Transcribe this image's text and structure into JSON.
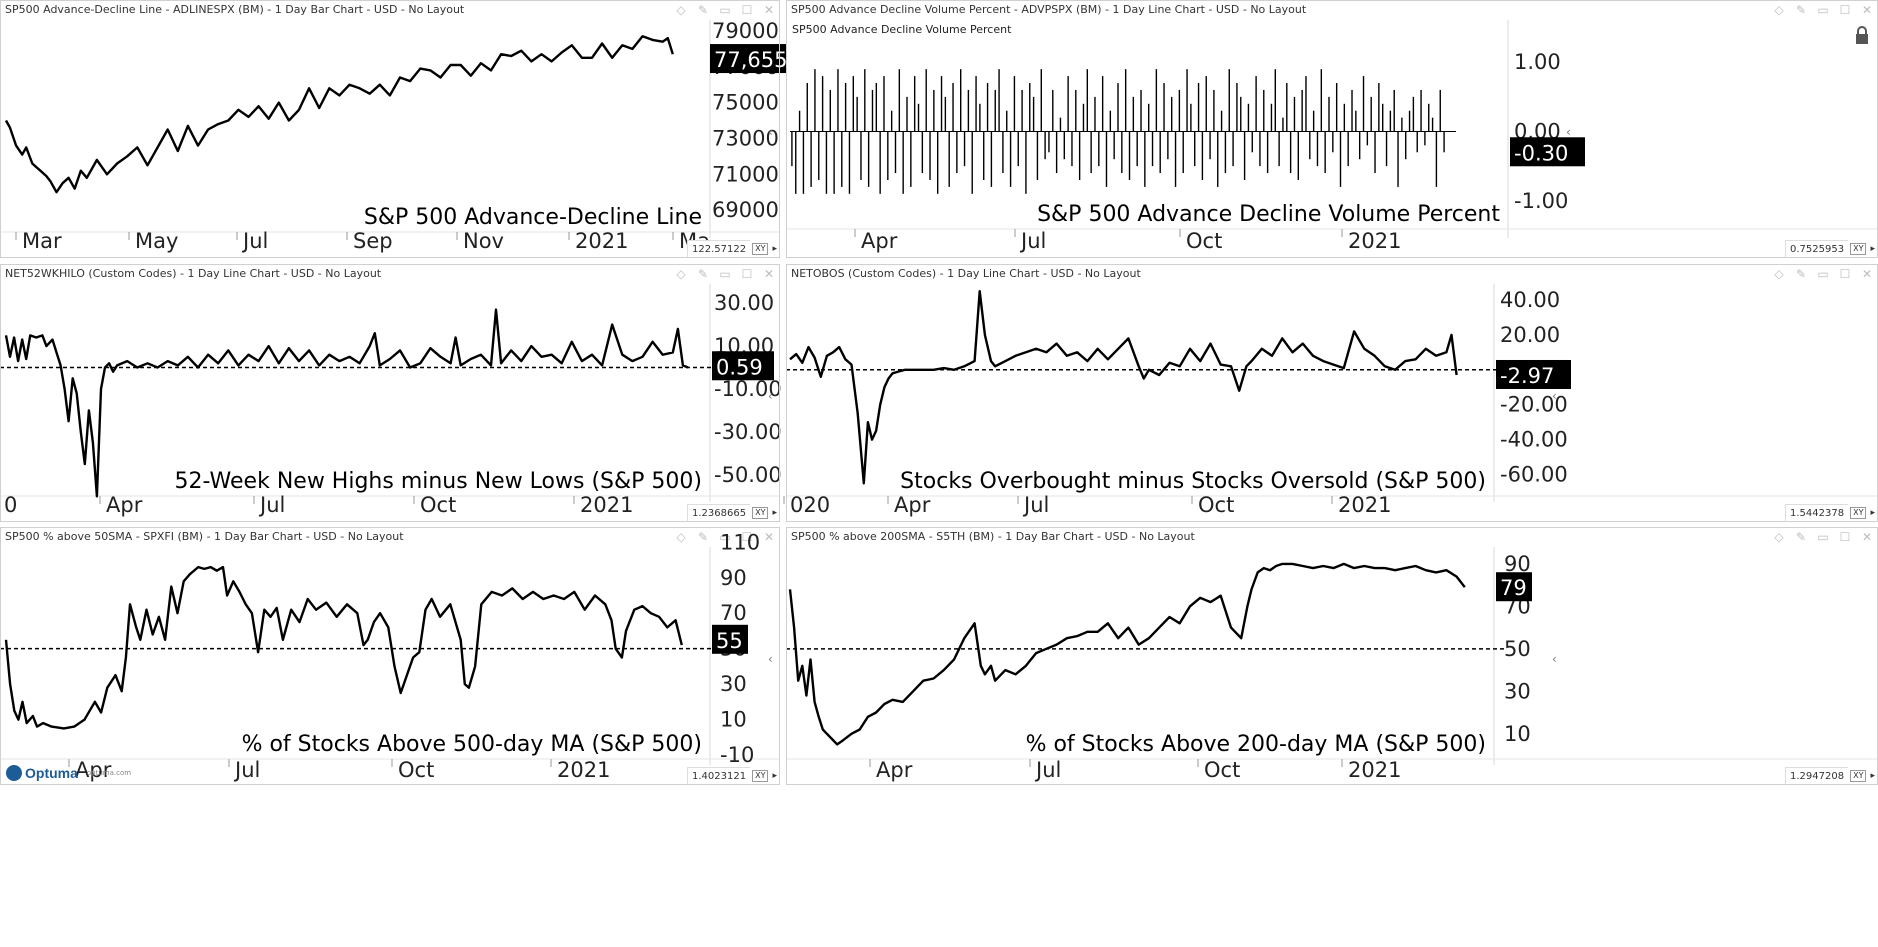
{
  "app": {
    "logo_text": "Optuma",
    "logo_sub": "optuma.com"
  },
  "window_icons": [
    "diamond-icon",
    "pin-icon",
    "restore-icon",
    "maximize-icon",
    "close-icon"
  ],
  "colors": {
    "line": "#000000",
    "label_bg": "#000000",
    "label_fg": "#ffffff",
    "border": "#d0d0d0",
    "brand": "#1d5c96"
  },
  "panels": [
    {
      "id": "adline",
      "title": "SP500 Advance-Decline Line - ADLINESPX (BM) - 1 Day Bar Chart - USD - No Layout",
      "xy_value": "122.57122",
      "chart_data": {
        "type": "line",
        "caption": "S&P 500 Advance-Decline Line",
        "y_ticks": [
          "79000",
          "77000",
          "75000",
          "73000",
          "71000",
          "69000"
        ],
        "x_ticks": [
          "Mar",
          "May",
          "Jul",
          "Sep",
          "Nov",
          "2021",
          "Ma"
        ],
        "ylim": [
          68000,
          79500
        ],
        "last_value": "77,655",
        "x": [
          0,
          4,
          10,
          16,
          20,
          26,
          30,
          34,
          40,
          44,
          50,
          56,
          62,
          68,
          74,
          80,
          90,
          100,
          110,
          120,
          130,
          140,
          150,
          160,
          170,
          180,
          190,
          200,
          210,
          220,
          230,
          240,
          250,
          260,
          270,
          280,
          290,
          300,
          310,
          320,
          330,
          340,
          350,
          360,
          370,
          380,
          390,
          400,
          410,
          420,
          430,
          440,
          450,
          460,
          470,
          480,
          490,
          500,
          510,
          520,
          530,
          540,
          550,
          560,
          570,
          580,
          590,
          600,
          610,
          620,
          630,
          640,
          650,
          655,
          660
        ],
        "values": [
          74000,
          73600,
          72600,
          72100,
          72500,
          71600,
          71400,
          71200,
          70900,
          70600,
          70000,
          70500,
          70800,
          70200,
          71200,
          70800,
          71800,
          71000,
          71600,
          72000,
          72500,
          71500,
          72500,
          73500,
          72300,
          73700,
          72600,
          73500,
          73800,
          74000,
          74600,
          74200,
          74800,
          74100,
          75000,
          74000,
          74600,
          75800,
          74700,
          75800,
          75400,
          76000,
          75800,
          75500,
          76000,
          75400,
          76400,
          76200,
          76900,
          76800,
          76400,
          77100,
          77100,
          76500,
          77200,
          76800,
          77700,
          77600,
          77900,
          77300,
          77700,
          77300,
          77800,
          78200,
          77500,
          77500,
          78300,
          77500,
          78200,
          78000,
          78700,
          78500,
          78400,
          78600,
          77700
        ]
      }
    },
    {
      "id": "advpspx",
      "title": "SP500 Advance Decline Volume Percent - ADVPSPX (BM) - 1 Day Line Chart - USD - No Layout",
      "subtitle": "SP500 Advance Decline Volume Percent",
      "xy_value": "0.7525953",
      "chart_data": {
        "type": "bar",
        "caption": "S&P 500 Advance Decline Volume Percent",
        "y_ticks": [
          "1.00",
          "0.00",
          "-1.00"
        ],
        "x_ticks": [
          "Apr",
          "Jul",
          "Oct",
          "2021"
        ],
        "ylim": [
          -1.35,
          1.35
        ],
        "last_value": "-0.30",
        "values": [
          -0.5,
          -0.9,
          0.3,
          -0.9,
          0.7,
          -0.8,
          0.9,
          -0.7,
          0.8,
          -0.9,
          0.6,
          -0.9,
          0.9,
          -0.8,
          0.7,
          -0.9,
          0.8,
          0.5,
          -0.7,
          0.9,
          -0.8,
          0.6,
          0.7,
          -0.9,
          0.8,
          -0.7,
          0.3,
          -0.6,
          0.9,
          -0.9,
          0.5,
          -0.8,
          0.8,
          0.4,
          -0.6,
          0.9,
          -0.7,
          0.6,
          -0.9,
          0.8,
          0.5,
          -0.8,
          0.7,
          -0.6,
          0.9,
          -0.5,
          0.6,
          -0.9,
          0.8,
          0.4,
          -0.7,
          0.7,
          -0.8,
          0.6,
          0.9,
          -0.6,
          0.3,
          -0.8,
          0.8,
          -0.5,
          0.6,
          -0.9,
          0.7,
          0.5,
          -0.7,
          0.9,
          -0.4,
          -0.3,
          0.6,
          -0.6,
          0.2,
          -0.4,
          0.8,
          -0.5,
          0.6,
          -0.7,
          0.4,
          0.9,
          -0.6,
          0.5,
          -0.5,
          0.8,
          -0.8,
          0.3,
          -0.4,
          0.7,
          -0.6,
          0.9,
          -0.7,
          0.5,
          -0.5,
          0.6,
          -0.8,
          0.4,
          -0.5,
          0.9,
          -0.6,
          0.7,
          -0.4,
          0.5,
          -0.8,
          0.6,
          -0.6,
          0.9,
          0.4,
          -0.5,
          0.7,
          -0.7,
          0.8,
          -0.4,
          0.6,
          -0.8,
          0.3,
          -0.6,
          0.9,
          -0.5,
          0.7,
          0.5,
          -0.7,
          0.4,
          -0.3,
          0.8,
          -0.5,
          0.6,
          -0.6,
          0.4,
          0.9,
          -0.5,
          0.2,
          0.7,
          -0.6,
          0.5,
          -0.7,
          0.6,
          0.8,
          -0.4,
          0.3,
          -0.5,
          0.9,
          -0.6,
          0.5,
          -0.3,
          0.7,
          -0.8,
          0.4,
          -0.5,
          0.6,
          0.3,
          -0.4,
          0.8,
          -0.2,
          0.5,
          -0.6,
          0.7,
          0.4,
          -0.5,
          0.3,
          0.6,
          -0.8,
          0.2,
          -0.4,
          0.3,
          0.5,
          -0.3,
          0.6,
          -0.2,
          0.4,
          0.2,
          -0.8,
          0.6,
          -0.3
        ]
      }
    },
    {
      "id": "net52",
      "title": "NET52WKHILO (Custom Codes) - 1 Day Line Chart - USD - No Layout",
      "xy_value": "1.2368665",
      "chart_data": {
        "type": "line",
        "caption": "52-Week New Highs minus New Lows (S&P 500)",
        "y_ticks": [
          "30.00",
          "10.00",
          "-10.00",
          "-30.00",
          "-50.00"
        ],
        "x_ticks": [
          "0",
          "Apr",
          "Jul",
          "Oct",
          "2021"
        ],
        "ylim": [
          -58,
          38
        ],
        "reference_line": 0,
        "last_value": "0.59",
        "x": [
          0,
          4,
          8,
          12,
          16,
          20,
          24,
          30,
          36,
          40,
          46,
          50,
          54,
          58,
          62,
          66,
          70,
          74,
          78,
          82,
          86,
          90,
          94,
          98,
          102,
          106,
          110,
          120,
          130,
          140,
          150,
          160,
          170,
          180,
          190,
          200,
          210,
          220,
          230,
          240,
          250,
          260,
          270,
          280,
          290,
          300,
          310,
          320,
          330,
          340,
          350,
          360,
          365,
          370,
          380,
          390,
          400,
          410,
          420,
          430,
          440,
          445,
          450,
          460,
          470,
          480,
          485,
          490,
          500,
          510,
          520,
          530,
          540,
          550,
          560,
          570,
          580,
          590,
          600,
          610,
          620,
          630,
          640,
          650,
          660,
          665,
          670,
          675
        ],
        "values": [
          15,
          5,
          14,
          3,
          13,
          4,
          15,
          14,
          15,
          10,
          13,
          7,
          1,
          -10,
          -25,
          -5,
          -12,
          -30,
          -45,
          -20,
          -35,
          -60,
          -10,
          0,
          2,
          -2,
          1,
          3,
          0,
          2,
          0,
          3,
          1,
          5,
          0,
          6,
          2,
          8,
          1,
          6,
          3,
          10,
          2,
          9,
          3,
          8,
          1,
          6,
          3,
          5,
          2,
          10,
          16,
          1,
          4,
          8,
          0,
          2,
          9,
          5,
          2,
          14,
          1,
          4,
          6,
          1,
          27,
          2,
          8,
          3,
          10,
          5,
          6,
          2,
          12,
          3,
          6,
          1,
          20,
          6,
          3,
          5,
          12,
          6,
          7,
          18,
          1,
          0
        ]
      }
    },
    {
      "id": "netobos",
      "title": "NETOBOS (Custom Codes) - 1 Day Line Chart - USD - No Layout",
      "xy_value": "1.5442378",
      "chart_data": {
        "type": "line",
        "caption": "Stocks Overbought minus Stocks Oversold (S&P 500)",
        "y_ticks": [
          "40.00",
          "20.00",
          "-2.97",
          "-20.00",
          "-40.00",
          "-60.00"
        ],
        "x_ticks": [
          "020",
          "Apr",
          "Jul",
          "Oct",
          "2021"
        ],
        "ylim": [
          -70,
          48
        ],
        "reference_line": 0,
        "last_value": "-2.97",
        "x": [
          0,
          6,
          12,
          18,
          24,
          30,
          36,
          42,
          48,
          54,
          60,
          66,
          72,
          76,
          80,
          84,
          88,
          92,
          96,
          100,
          106,
          112,
          120,
          130,
          140,
          150,
          160,
          170,
          180,
          185,
          190,
          196,
          200,
          210,
          220,
          230,
          240,
          250,
          260,
          270,
          280,
          290,
          300,
          310,
          320,
          330,
          340,
          345,
          350,
          360,
          370,
          380,
          390,
          400,
          410,
          420,
          430,
          438,
          445,
          450,
          460,
          470,
          480,
          490,
          500,
          510,
          520,
          530,
          540,
          550,
          560,
          570,
          580,
          590,
          600,
          610,
          620,
          630,
          640,
          645,
          650
        ],
        "values": [
          6,
          9,
          4,
          13,
          7,
          -4,
          8,
          10,
          13,
          6,
          3,
          -25,
          -65,
          -30,
          -40,
          -35,
          -20,
          -10,
          -5,
          -2,
          -1,
          0,
          0,
          0,
          0,
          1,
          0,
          2,
          5,
          45,
          20,
          5,
          2,
          5,
          8,
          10,
          12,
          10,
          15,
          8,
          10,
          5,
          12,
          6,
          12,
          18,
          2,
          -5,
          0,
          -3,
          4,
          2,
          12,
          5,
          15,
          3,
          2,
          -12,
          2,
          5,
          12,
          8,
          18,
          10,
          15,
          8,
          5,
          3,
          1,
          22,
          12,
          8,
          2,
          0,
          5,
          6,
          12,
          8,
          10,
          20,
          -3
        ]
      }
    },
    {
      "id": "spxfi",
      "title": "SP500 % above 50SMA - SPXFI (BM) - 1 Day Bar Chart - USD - No Layout",
      "xy_value": "1.4023121",
      "chart_data": {
        "type": "line",
        "caption": "% of Stocks Above 500-day MA (S&P 500)",
        "y_ticks": [
          "110",
          "90",
          "70",
          "50",
          "30",
          "10",
          "-10"
        ],
        "x_ticks": [
          "Apr",
          "Jul",
          "Oct",
          "2021"
        ],
        "ylim": [
          -10,
          113
        ],
        "reference_line": 50,
        "last_value": "55",
        "x": [
          0,
          4,
          8,
          12,
          16,
          20,
          26,
          30,
          36,
          44,
          56,
          66,
          76,
          86,
          92,
          98,
          106,
          112,
          116,
          120,
          126,
          130,
          136,
          142,
          148,
          154,
          160,
          166,
          172,
          178,
          186,
          192,
          198,
          204,
          210,
          214,
          220,
          226,
          232,
          238,
          244,
          250,
          256,
          262,
          268,
          276,
          284,
          292,
          300,
          310,
          320,
          330,
          340,
          346,
          350,
          356,
          362,
          370,
          376,
          382,
          388,
          394,
          400,
          406,
          412,
          420,
          430,
          440,
          444,
          448,
          454,
          460,
          470,
          480,
          490,
          500,
          510,
          520,
          530,
          540,
          550,
          560,
          570,
          580,
          586,
          590,
          596,
          600,
          608,
          616,
          624,
          632,
          640,
          648,
          654
        ],
        "values": [
          55,
          30,
          15,
          10,
          20,
          8,
          12,
          6,
          8,
          6,
          5,
          6,
          10,
          20,
          14,
          28,
          35,
          26,
          45,
          75,
          62,
          55,
          72,
          58,
          68,
          55,
          85,
          70,
          88,
          92,
          96,
          95,
          96,
          94,
          96,
          80,
          88,
          82,
          75,
          70,
          48,
          72,
          68,
          73,
          55,
          72,
          65,
          78,
          72,
          76,
          68,
          75,
          70,
          52,
          55,
          65,
          70,
          62,
          40,
          25,
          35,
          45,
          48,
          72,
          78,
          68,
          75,
          55,
          30,
          28,
          40,
          75,
          82,
          80,
          84,
          78,
          82,
          78,
          80,
          78,
          82,
          72,
          80,
          75,
          66,
          50,
          45,
          60,
          72,
          74,
          70,
          68,
          62,
          66,
          52
        ]
      }
    },
    {
      "id": "s5th",
      "title": "SP500 % above 200SMA - S5TH (BM) - 1 Day Bar Chart - USD - No Layout",
      "xy_value": "1.2947208",
      "chart_data": {
        "type": "line",
        "caption": "% of Stocks Above 200-day MA (S&P 500)",
        "y_ticks": [
          "90",
          "70",
          "50",
          "30",
          "10"
        ],
        "x_ticks": [
          "Apr",
          "Jul",
          "Oct",
          "2021"
        ],
        "ylim": [
          0,
          97
        ],
        "reference_line": 50,
        "last_value": "79",
        "x": [
          0,
          4,
          8,
          12,
          16,
          20,
          24,
          28,
          32,
          36,
          40,
          46,
          52,
          60,
          68,
          76,
          84,
          92,
          100,
          110,
          120,
          130,
          140,
          150,
          160,
          170,
          180,
          186,
          190,
          196,
          200,
          210,
          220,
          230,
          240,
          250,
          260,
          270,
          280,
          290,
          300,
          310,
          320,
          330,
          340,
          350,
          360,
          370,
          380,
          390,
          400,
          410,
          420,
          430,
          440,
          446,
          450,
          456,
          462,
          468,
          474,
          480,
          490,
          500,
          510,
          520,
          530,
          540,
          550,
          560,
          570,
          580,
          590,
          600,
          610,
          620,
          630,
          640,
          650,
          658
        ],
        "values": [
          78,
          60,
          35,
          42,
          28,
          45,
          25,
          18,
          12,
          10,
          8,
          5,
          7,
          10,
          12,
          18,
          20,
          24,
          26,
          25,
          30,
          35,
          36,
          40,
          45,
          55,
          62,
          42,
          38,
          42,
          35,
          40,
          38,
          42,
          48,
          50,
          52,
          55,
          56,
          58,
          58,
          62,
          55,
          60,
          52,
          55,
          60,
          65,
          62,
          70,
          74,
          72,
          75,
          60,
          55,
          70,
          78,
          86,
          88,
          87,
          89,
          90,
          90,
          89,
          88,
          89,
          88,
          90,
          88,
          89,
          88,
          88,
          87,
          88,
          89,
          87,
          86,
          87,
          84,
          79
        ]
      }
    }
  ]
}
